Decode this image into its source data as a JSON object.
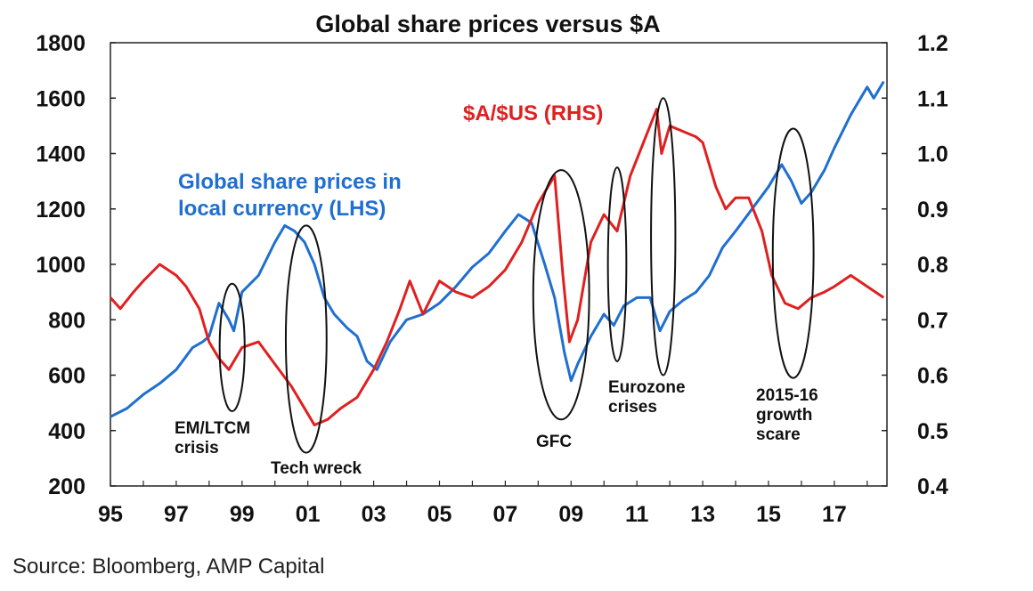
{
  "chart_data": {
    "type": "line",
    "title": "Global share prices versus $A",
    "source": "Source: Bloomberg, AMP Capital",
    "xlim": [
      1995,
      2018.6
    ],
    "x_tick_labels": [
      {
        "x": 1995,
        "label": "95"
      },
      {
        "x": 1997,
        "label": "97"
      },
      {
        "x": 1999,
        "label": "99"
      },
      {
        "x": 2001,
        "label": "01"
      },
      {
        "x": 2003,
        "label": "03"
      },
      {
        "x": 2005,
        "label": "05"
      },
      {
        "x": 2007,
        "label": "07"
      },
      {
        "x": 2009,
        "label": "09"
      },
      {
        "x": 2011,
        "label": "11"
      },
      {
        "x": 2013,
        "label": "13"
      },
      {
        "x": 2015,
        "label": "15"
      },
      {
        "x": 2017,
        "label": "17"
      }
    ],
    "ylim_left": [
      200,
      1800
    ],
    "y_left_ticks": [
      "200",
      "400",
      "600",
      "800",
      "1000",
      "1200",
      "1400",
      "1600",
      "1800"
    ],
    "ylim_right": [
      0.4,
      1.2
    ],
    "y_right_ticks": [
      "0.4",
      "0.5",
      "0.6",
      "0.7",
      "0.8",
      "0.9",
      "1.0",
      "1.1",
      "1.2"
    ],
    "grid": false,
    "series": [
      {
        "name_lines": [
          "Global share prices in",
          "local currency (LHS)"
        ],
        "axis": "left",
        "color": "#1f6fd0",
        "points": [
          [
            1995.0,
            450
          ],
          [
            1995.5,
            480
          ],
          [
            1996.0,
            530
          ],
          [
            1996.5,
            570
          ],
          [
            1997.0,
            620
          ],
          [
            1997.5,
            700
          ],
          [
            1997.8,
            720
          ],
          [
            1998.0,
            740
          ],
          [
            1998.3,
            860
          ],
          [
            1998.6,
            800
          ],
          [
            1998.75,
            760
          ],
          [
            1999.0,
            900
          ],
          [
            1999.5,
            960
          ],
          [
            2000.0,
            1080
          ],
          [
            2000.3,
            1140
          ],
          [
            2000.6,
            1120
          ],
          [
            2000.9,
            1080
          ],
          [
            2001.2,
            1000
          ],
          [
            2001.5,
            880
          ],
          [
            2001.8,
            820
          ],
          [
            2002.2,
            770
          ],
          [
            2002.5,
            740
          ],
          [
            2002.8,
            650
          ],
          [
            2003.1,
            620
          ],
          [
            2003.5,
            720
          ],
          [
            2004.0,
            800
          ],
          [
            2004.5,
            820
          ],
          [
            2005.0,
            860
          ],
          [
            2005.5,
            920
          ],
          [
            2006.0,
            990
          ],
          [
            2006.5,
            1040
          ],
          [
            2007.0,
            1120
          ],
          [
            2007.4,
            1180
          ],
          [
            2007.8,
            1150
          ],
          [
            2008.2,
            1000
          ],
          [
            2008.5,
            880
          ],
          [
            2008.8,
            680
          ],
          [
            2009.0,
            580
          ],
          [
            2009.2,
            640
          ],
          [
            2009.6,
            740
          ],
          [
            2010.0,
            820
          ],
          [
            2010.3,
            780
          ],
          [
            2010.6,
            850
          ],
          [
            2011.0,
            880
          ],
          [
            2011.4,
            880
          ],
          [
            2011.7,
            760
          ],
          [
            2012.0,
            830
          ],
          [
            2012.4,
            870
          ],
          [
            2012.8,
            900
          ],
          [
            2013.2,
            960
          ],
          [
            2013.6,
            1060
          ],
          [
            2014.0,
            1120
          ],
          [
            2014.5,
            1200
          ],
          [
            2015.0,
            1280
          ],
          [
            2015.4,
            1360
          ],
          [
            2015.7,
            1300
          ],
          [
            2016.0,
            1220
          ],
          [
            2016.3,
            1260
          ],
          [
            2016.7,
            1340
          ],
          [
            2017.0,
            1420
          ],
          [
            2017.5,
            1540
          ],
          [
            2018.0,
            1640
          ],
          [
            2018.2,
            1600
          ],
          [
            2018.5,
            1660
          ]
        ]
      },
      {
        "name": "$A/$US (RHS)",
        "axis": "right",
        "color": "#e02020",
        "points": [
          [
            1995.0,
            0.74
          ],
          [
            1995.3,
            0.72
          ],
          [
            1995.7,
            0.75
          ],
          [
            1996.0,
            0.77
          ],
          [
            1996.5,
            0.8
          ],
          [
            1997.0,
            0.78
          ],
          [
            1997.3,
            0.76
          ],
          [
            1997.7,
            0.72
          ],
          [
            1998.0,
            0.66
          ],
          [
            1998.3,
            0.63
          ],
          [
            1998.6,
            0.61
          ],
          [
            1999.0,
            0.65
          ],
          [
            1999.5,
            0.66
          ],
          [
            2000.0,
            0.62
          ],
          [
            2000.5,
            0.58
          ],
          [
            2000.9,
            0.54
          ],
          [
            2001.2,
            0.51
          ],
          [
            2001.6,
            0.52
          ],
          [
            2002.0,
            0.54
          ],
          [
            2002.5,
            0.56
          ],
          [
            2003.0,
            0.61
          ],
          [
            2003.4,
            0.66
          ],
          [
            2003.8,
            0.72
          ],
          [
            2004.1,
            0.77
          ],
          [
            2004.5,
            0.71
          ],
          [
            2005.0,
            0.77
          ],
          [
            2005.5,
            0.75
          ],
          [
            2006.0,
            0.74
          ],
          [
            2006.5,
            0.76
          ],
          [
            2007.0,
            0.79
          ],
          [
            2007.5,
            0.84
          ],
          [
            2008.0,
            0.91
          ],
          [
            2008.5,
            0.96
          ],
          [
            2008.75,
            0.78
          ],
          [
            2008.95,
            0.66
          ],
          [
            2009.2,
            0.7
          ],
          [
            2009.6,
            0.84
          ],
          [
            2010.0,
            0.89
          ],
          [
            2010.4,
            0.86
          ],
          [
            2010.8,
            0.96
          ],
          [
            2011.2,
            1.02
          ],
          [
            2011.6,
            1.08
          ],
          [
            2011.75,
            1.0
          ],
          [
            2012.0,
            1.05
          ],
          [
            2012.4,
            1.04
          ],
          [
            2012.8,
            1.03
          ],
          [
            2013.0,
            1.02
          ],
          [
            2013.4,
            0.94
          ],
          [
            2013.7,
            0.9
          ],
          [
            2014.0,
            0.92
          ],
          [
            2014.4,
            0.92
          ],
          [
            2014.8,
            0.86
          ],
          [
            2015.1,
            0.78
          ],
          [
            2015.5,
            0.73
          ],
          [
            2015.9,
            0.72
          ],
          [
            2016.3,
            0.74
          ],
          [
            2016.7,
            0.75
          ],
          [
            2017.0,
            0.76
          ],
          [
            2017.5,
            0.78
          ],
          [
            2018.0,
            0.76
          ],
          [
            2018.5,
            0.74
          ]
        ]
      }
    ],
    "annotations": [
      {
        "lines": [
          "EM/LTCM",
          "crisis"
        ],
        "cx": 1998.7,
        "cy": 700,
        "rx": 0.38,
        "ry": 230
      },
      {
        "lines": [
          "Tech wreck"
        ],
        "cx": 2000.95,
        "cy": 730,
        "rx": 0.62,
        "ry": 410
      },
      {
        "lines": [
          "GFC"
        ],
        "cx": 2008.7,
        "cy": 890,
        "rx": 0.85,
        "ry": 450
      },
      {
        "lines": [
          "Eurozone",
          "crises"
        ],
        "cx": 2010.4,
        "cy": 1000,
        "rx": 0.28,
        "ry": 350
      },
      {
        "lines": [
          "2015-16",
          "growth",
          "scare"
        ],
        "cx": 2015.75,
        "cy": 1040,
        "rx": 0.62,
        "ry": 450
      },
      {
        "lines": [],
        "cx": 2011.8,
        "cy": 1100,
        "rx": 0.37,
        "ry": 500
      }
    ]
  }
}
